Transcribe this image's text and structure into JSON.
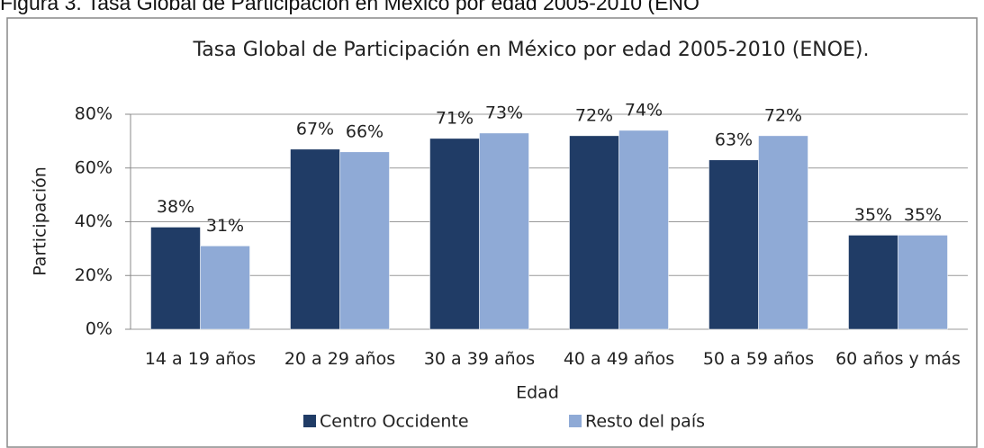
{
  "caption": "Figura 3. Tasa Global de Participación en México por edad 2005-2010 (ENO",
  "chart_data": {
    "type": "bar",
    "title": "Tasa Global de Participación  en México  por edad  2005-2010 (ENOE).",
    "x_label": "Edad",
    "y_label": "Participación",
    "categories": [
      "14 a 19 años",
      "20 a 29 años",
      "30 a 39 años",
      "40 a 49 años",
      "50 a 59 años",
      "60 años  y más"
    ],
    "series": [
      {
        "name": "Centro Occidente",
        "color": "#203c66",
        "values": [
          38,
          67,
          71,
          72,
          63,
          35
        ],
        "value_labels": [
          "38%",
          "67%",
          "71%",
          "72%",
          "63%",
          "35%"
        ]
      },
      {
        "name": "Resto  del país",
        "color": "#8faad6",
        "values": [
          31,
          66,
          73,
          74,
          72,
          35
        ],
        "value_labels": [
          "31%",
          "66%",
          "73%",
          "74%",
          "72%",
          "35%"
        ]
      }
    ],
    "ylim": [
      0,
      80
    ],
    "yticks": [
      {
        "value": 0,
        "label": "0%"
      },
      {
        "value": 20,
        "label": "20%"
      },
      {
        "value": 40,
        "label": "40%"
      },
      {
        "value": 60,
        "label": "60%"
      },
      {
        "value": 80,
        "label": "80%"
      }
    ],
    "grid": true,
    "legend": "bottom"
  }
}
